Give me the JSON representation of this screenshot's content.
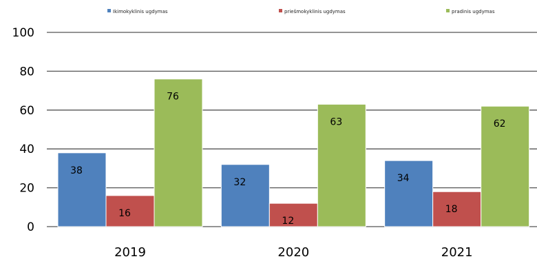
{
  "chart_data": {
    "type": "bar",
    "categories": [
      "2019",
      "2020",
      "2021"
    ],
    "series": [
      {
        "name": "Ikimokyklinis ugdymas",
        "values": [
          38,
          32,
          34
        ],
        "color": "#4F81BD"
      },
      {
        "name": "priešmokyklinis ugdymas",
        "values": [
          16,
          12,
          18
        ],
        "color": "#C0504D"
      },
      {
        "name": "pradinis ugdymas",
        "values": [
          76,
          63,
          62
        ],
        "color": "#9BBB59"
      }
    ],
    "ylim": [
      0,
      100
    ],
    "yticks": [
      "0",
      "20",
      "40",
      "60",
      "80",
      "100"
    ],
    "grid": true,
    "legend": "top"
  }
}
